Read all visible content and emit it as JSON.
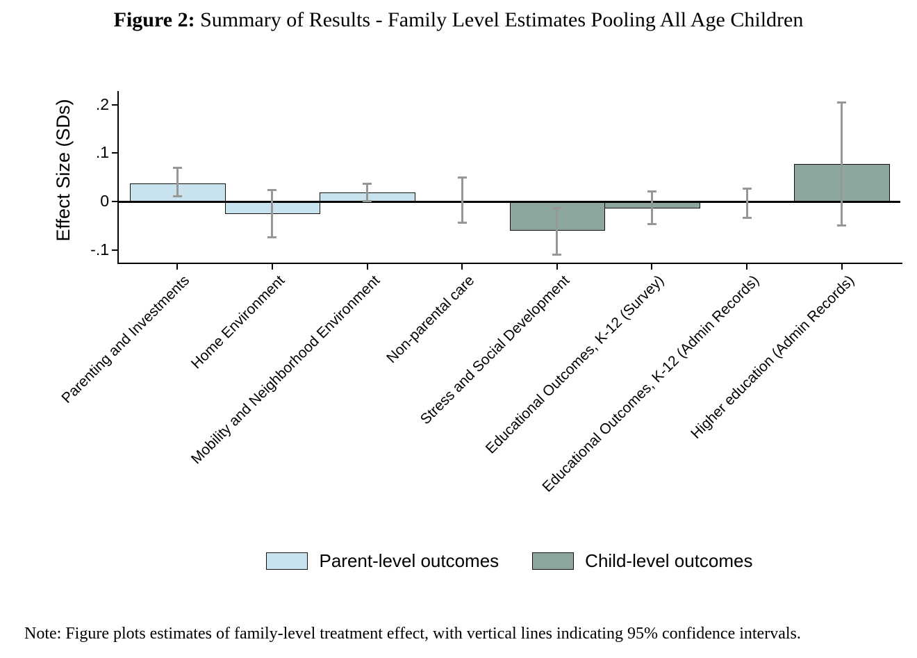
{
  "figure": {
    "title_prefix": "Figure 2:",
    "title_rest": " Summary of Results - Family Level Estimates Pooling All Age Children",
    "note": "Note: Figure plots estimates of family-level treatment effect, with vertical lines indicating 95% confidence intervals."
  },
  "chart_data": {
    "type": "bar",
    "title": "Figure 2: Summary of Results - Family Level Estimates Pooling All Age Children",
    "xlabel": "",
    "ylabel": "Effect Size (SDs)",
    "ylim": [
      -0.126,
      0.228
    ],
    "grid": false,
    "zero_line": true,
    "error_bars": "95% confidence intervals",
    "yticks": [
      {
        "value": 0.2,
        "label": ".2"
      },
      {
        "value": 0.1,
        "label": ".1"
      },
      {
        "value": 0.0,
        "label": "0"
      },
      {
        "value": -0.1,
        "label": "-.1"
      }
    ],
    "categories": [
      "Parenting and Investments",
      "Home Environment",
      "Mobility and Neighborhood Environment",
      "Non-parental care",
      "Stress and Social Development",
      "Educational Outcomes, K-12 (Survey)",
      "Educational Outcomes, K-12 (Admin Records)",
      "Higher education (Admin Records)"
    ],
    "bars": [
      {
        "category": "Parenting and Investments",
        "series": "Parent-level outcomes",
        "value": 0.038,
        "ci_low": 0.011,
        "ci_high": 0.069
      },
      {
        "category": "Home Environment",
        "series": "Parent-level outcomes",
        "value": -0.026,
        "ci_low": -0.074,
        "ci_high": 0.024
      },
      {
        "category": "Mobility and Neighborhood Environment",
        "series": "Parent-level outcomes",
        "value": 0.019,
        "ci_low": 0.001,
        "ci_high": 0.037
      },
      {
        "category": "Non-parental care",
        "series": "Parent-level outcomes",
        "value": 0.001,
        "ci_low": -0.043,
        "ci_high": 0.049
      },
      {
        "category": "Stress and Social Development",
        "series": "Child-level outcomes",
        "value": -0.06,
        "ci_low": -0.109,
        "ci_high": -0.013
      },
      {
        "category": "Educational Outcomes, K-12 (Survey)",
        "series": "Child-level outcomes",
        "value": -0.014,
        "ci_low": -0.047,
        "ci_high": 0.021
      },
      {
        "category": "Educational Outcomes, K-12 (Admin Records)",
        "series": "Child-level outcomes",
        "value": -0.001,
        "ci_low": -0.033,
        "ci_high": 0.026
      },
      {
        "category": "Higher education (Admin Records)",
        "series": "Child-level outcomes",
        "value": 0.077,
        "ci_low": -0.05,
        "ci_high": 0.205
      }
    ],
    "legend": {
      "position": "bottom",
      "entries": [
        {
          "label": "Parent-level outcomes",
          "color": "#c9e3ee"
        },
        {
          "label": "Child-level outcomes",
          "color": "#8da79f"
        }
      ]
    },
    "colors": {
      "parent_bar": "#c9e3ee",
      "child_bar": "#8da79f",
      "bar_outline": "#101010",
      "error_bar": "#979797",
      "axis": "#000000",
      "background": "#ffffff"
    }
  }
}
